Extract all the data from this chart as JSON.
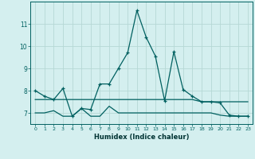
{
  "xlabel": "Humidex (Indice chaleur)",
  "ylabel": "",
  "xlim": [
    -0.5,
    23.5
  ],
  "ylim": [
    6.5,
    12.0
  ],
  "yticks": [
    7,
    8,
    9,
    10,
    11
  ],
  "xticks": [
    0,
    1,
    2,
    3,
    4,
    5,
    6,
    7,
    8,
    9,
    10,
    11,
    12,
    13,
    14,
    15,
    16,
    17,
    18,
    19,
    20,
    21,
    22,
    23
  ],
  "background_color": "#d4efef",
  "grid_color": "#b5d8d5",
  "line_color": "#006060",
  "series1_y": [
    8.0,
    7.75,
    7.6,
    8.1,
    6.85,
    7.2,
    7.15,
    8.3,
    8.3,
    9.0,
    9.7,
    11.6,
    10.4,
    9.55,
    7.55,
    9.75,
    8.05,
    7.75,
    7.5,
    7.5,
    7.45,
    6.9,
    6.85,
    6.85
  ],
  "series2_y": [
    7.6,
    7.6,
    7.6,
    7.6,
    7.6,
    7.6,
    7.6,
    7.6,
    7.6,
    7.6,
    7.6,
    7.6,
    7.6,
    7.6,
    7.6,
    7.6,
    7.6,
    7.6,
    7.5,
    7.5,
    7.5,
    7.5,
    7.5,
    7.5
  ],
  "series3_y": [
    7.0,
    7.0,
    7.1,
    6.85,
    6.85,
    7.2,
    6.85,
    6.85,
    7.3,
    7.0,
    7.0,
    7.0,
    7.0,
    7.0,
    7.0,
    7.0,
    7.0,
    7.0,
    7.0,
    7.0,
    6.9,
    6.85,
    6.85,
    6.85
  ]
}
